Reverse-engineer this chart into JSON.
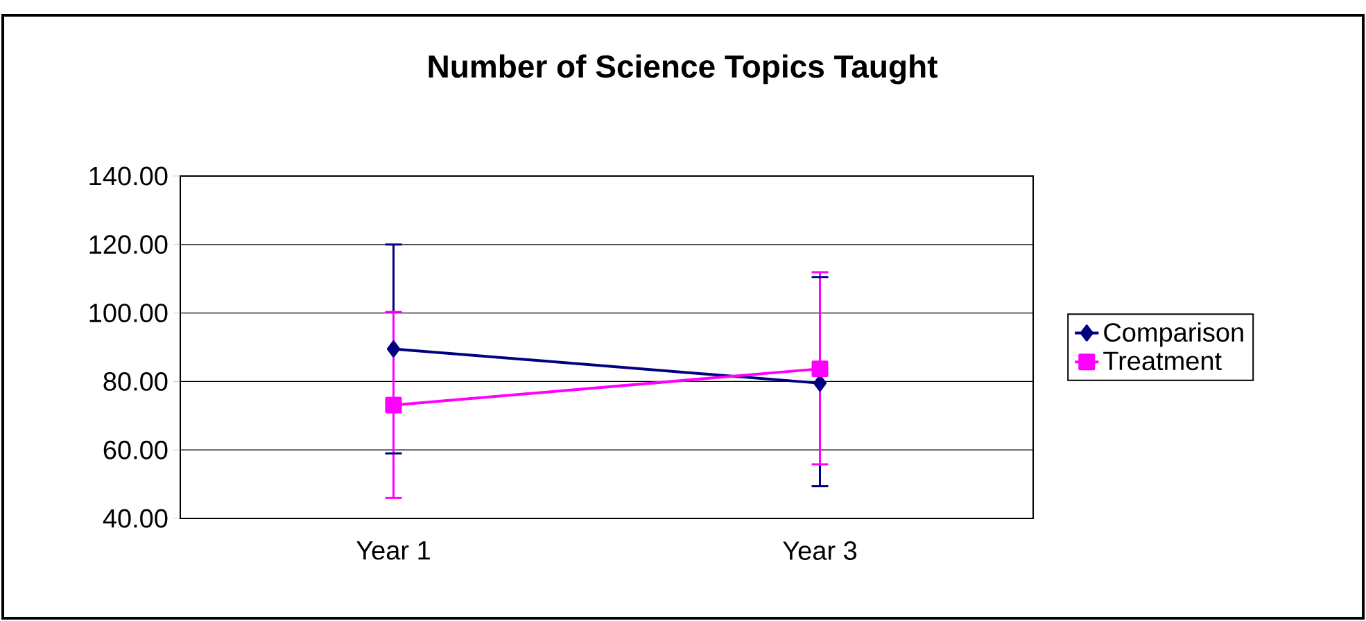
{
  "chart_data": {
    "type": "line",
    "title": "Number of Science Topics Taught",
    "categories": [
      "Year 1",
      "Year 3"
    ],
    "series": [
      {
        "name": "Comparison",
        "color": "#000080",
        "marker": "diamond",
        "values": [
          89.5,
          79.5
        ],
        "errors": [
          [
            59,
            120
          ],
          [
            49.4,
            110.5
          ]
        ]
      },
      {
        "name": "Treatment",
        "color": "#ff00ff",
        "marker": "square",
        "values": [
          73.1,
          83.7
        ],
        "errors": [
          [
            46,
            100.3
          ],
          [
            55.8,
            111.9
          ]
        ]
      }
    ],
    "ylim": [
      40,
      140
    ],
    "yticks": [
      {
        "value": 40,
        "label": "40.00"
      },
      {
        "value": 60,
        "label": "60.00"
      },
      {
        "value": 80,
        "label": "80.00"
      },
      {
        "value": 100,
        "label": "100.00"
      },
      {
        "value": 120,
        "label": "120.00"
      },
      {
        "value": 140,
        "label": "140.00"
      }
    ],
    "grid": "y",
    "legend": "right",
    "line_style": "solid"
  }
}
